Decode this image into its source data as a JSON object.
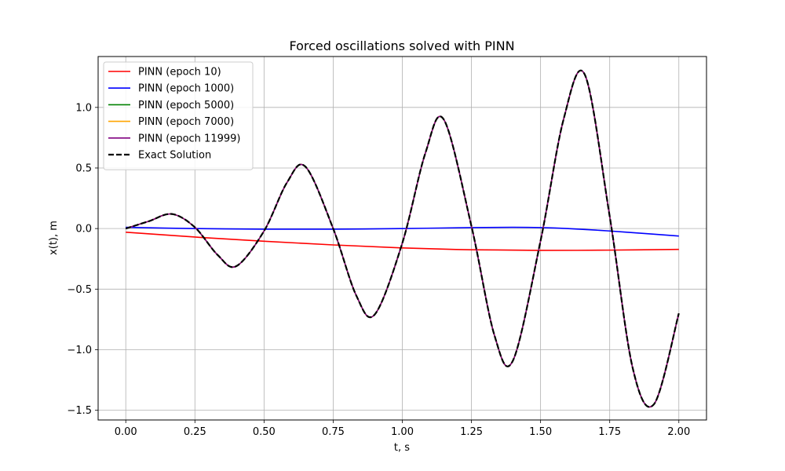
{
  "chart_data": {
    "type": "line",
    "title": "Forced oscillations solved with PINN",
    "xlabel": "t, s",
    "ylabel": "x(t), m",
    "xlim": [
      -0.1,
      2.1
    ],
    "ylim": [
      -1.58,
      1.42
    ],
    "xticks": [
      0.0,
      0.25,
      0.5,
      0.75,
      1.0,
      1.25,
      1.5,
      1.75,
      2.0
    ],
    "xtick_labels": [
      "0.00",
      "0.25",
      "0.50",
      "0.75",
      "1.00",
      "1.25",
      "1.50",
      "1.75",
      "2.00"
    ],
    "yticks": [
      -1.5,
      -1.0,
      -0.5,
      0.0,
      0.5,
      1.0
    ],
    "ytick_labels": [
      "−1.5",
      "−1.0",
      "−0.5",
      "0.0",
      "0.5",
      "1.0"
    ],
    "grid": true,
    "legend_position": "top-left",
    "series": [
      {
        "name": "PINN (epoch 10)",
        "color": "#ff0000",
        "style": "solid",
        "x": [
          0.0,
          0.25,
          0.5,
          0.75,
          1.0,
          1.25,
          1.5,
          1.75,
          2.0
        ],
        "y": [
          -0.03,
          -0.07,
          -0.105,
          -0.135,
          -0.16,
          -0.175,
          -0.18,
          -0.178,
          -0.172
        ]
      },
      {
        "name": "PINN (epoch 1000)",
        "color": "#0000ff",
        "style": "solid",
        "x": [
          0.0,
          0.25,
          0.5,
          0.75,
          1.0,
          1.25,
          1.4,
          1.5,
          1.6,
          1.75,
          1.9,
          2.0
        ],
        "y": [
          0.01,
          0.0,
          -0.005,
          -0.005,
          0.0,
          0.008,
          0.01,
          0.008,
          0.0,
          -0.02,
          -0.045,
          -0.062
        ]
      },
      {
        "name": "PINN (epoch 5000)",
        "color": "#008000",
        "style": "solid",
        "x": [
          0.0,
          0.083,
          0.167,
          0.25,
          0.333,
          0.4,
          0.5,
          0.583,
          0.65,
          0.75,
          0.833,
          0.9,
          1.0,
          1.083,
          1.15,
          1.25,
          1.333,
          1.4,
          1.5,
          1.583,
          1.66,
          1.75,
          1.833,
          1.91,
          2.0
        ],
        "y": [
          0.0,
          0.06,
          0.12,
          0.01,
          -0.22,
          -0.31,
          -0.02,
          0.38,
          0.51,
          0.0,
          -0.55,
          -0.71,
          -0.12,
          0.62,
          0.9,
          0.02,
          -0.88,
          -1.09,
          -0.1,
          0.9,
          1.27,
          0.1,
          -1.15,
          -1.45,
          -0.7
        ]
      },
      {
        "name": "PINN (epoch 7000)",
        "color": "#ffa500",
        "style": "solid",
        "x": [
          0.0,
          0.083,
          0.167,
          0.25,
          0.333,
          0.4,
          0.5,
          0.583,
          0.65,
          0.75,
          0.833,
          0.9,
          1.0,
          1.083,
          1.15,
          1.25,
          1.333,
          1.4,
          1.5,
          1.583,
          1.66,
          1.75,
          1.833,
          1.91,
          2.0
        ],
        "y": [
          0.0,
          0.06,
          0.12,
          0.01,
          -0.22,
          -0.31,
          -0.02,
          0.38,
          0.51,
          0.0,
          -0.55,
          -0.71,
          -0.12,
          0.62,
          0.9,
          0.02,
          -0.88,
          -1.09,
          -0.1,
          0.9,
          1.27,
          0.1,
          -1.15,
          -1.45,
          -0.7
        ]
      },
      {
        "name": "PINN (epoch 11999)",
        "color": "#800080",
        "style": "solid",
        "x": [
          0.0,
          0.083,
          0.167,
          0.25,
          0.333,
          0.4,
          0.5,
          0.583,
          0.65,
          0.75,
          0.833,
          0.9,
          1.0,
          1.083,
          1.15,
          1.25,
          1.333,
          1.4,
          1.5,
          1.583,
          1.66,
          1.75,
          1.833,
          1.91,
          2.0
        ],
        "y": [
          0.0,
          0.06,
          0.12,
          0.01,
          -0.22,
          -0.31,
          -0.02,
          0.38,
          0.51,
          0.0,
          -0.55,
          -0.71,
          -0.12,
          0.62,
          0.9,
          0.02,
          -0.88,
          -1.09,
          -0.1,
          0.9,
          1.27,
          0.1,
          -1.15,
          -1.45,
          -0.7
        ]
      },
      {
        "name": "Exact Solution",
        "color": "#000000",
        "style": "dashed",
        "x": [
          0.0,
          0.083,
          0.167,
          0.25,
          0.333,
          0.4,
          0.5,
          0.583,
          0.65,
          0.75,
          0.833,
          0.9,
          1.0,
          1.083,
          1.15,
          1.25,
          1.333,
          1.4,
          1.5,
          1.583,
          1.66,
          1.75,
          1.833,
          1.91,
          2.0
        ],
        "y": [
          0.0,
          0.06,
          0.12,
          0.01,
          -0.22,
          -0.31,
          -0.02,
          0.38,
          0.51,
          0.0,
          -0.55,
          -0.71,
          -0.12,
          0.62,
          0.9,
          0.02,
          -0.88,
          -1.09,
          -0.1,
          0.9,
          1.27,
          0.1,
          -1.15,
          -1.45,
          -0.7
        ]
      }
    ]
  }
}
